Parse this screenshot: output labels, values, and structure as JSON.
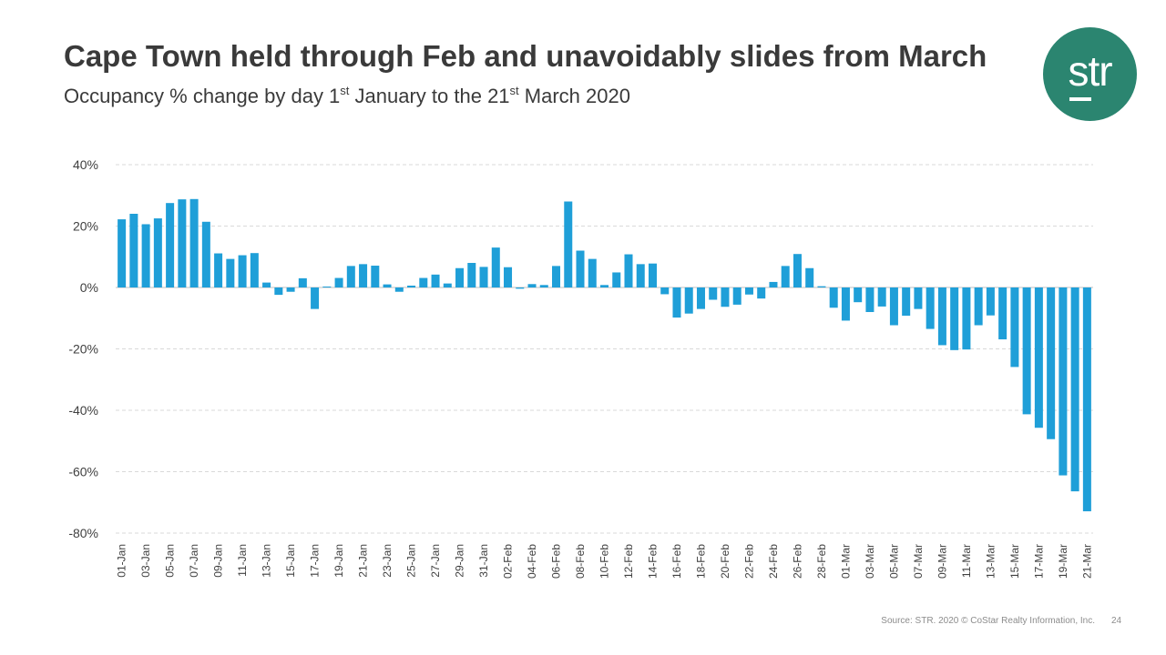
{
  "slide": {
    "title": "Cape Town held through Feb and unavoidably slides from March",
    "subtitle": {
      "part1": "Occupancy % change by day 1",
      "sup1": "st",
      "part2": " January to the 21",
      "sup2": "st",
      "part3": " March 2020"
    },
    "logo_text": "str",
    "source": "Source: STR. 2020 © CoStar Realty Information, Inc.",
    "page_number": "24"
  },
  "colors": {
    "bar": "#1f9fd8",
    "logo": "#2b8570",
    "grid": "#d9d9d9",
    "axis_text": "#404040"
  },
  "chart_data": {
    "type": "bar",
    "title": "",
    "xlabel": "",
    "ylabel": "",
    "ylim": [
      -80,
      40
    ],
    "yticks": [
      40,
      20,
      0,
      -20,
      -40,
      -60,
      -80
    ],
    "ytick_labels": [
      "40%",
      "20%",
      "0%",
      "-20%",
      "-40%",
      "-60%",
      "-80%"
    ],
    "grid": true,
    "categories": [
      "01-Jan",
      "02-Jan",
      "03-Jan",
      "04-Jan",
      "05-Jan",
      "06-Jan",
      "07-Jan",
      "08-Jan",
      "09-Jan",
      "10-Jan",
      "11-Jan",
      "12-Jan",
      "13-Jan",
      "14-Jan",
      "15-Jan",
      "16-Jan",
      "17-Jan",
      "18-Jan",
      "19-Jan",
      "20-Jan",
      "21-Jan",
      "22-Jan",
      "23-Jan",
      "24-Jan",
      "25-Jan",
      "26-Jan",
      "27-Jan",
      "28-Jan",
      "29-Jan",
      "30-Jan",
      "31-Jan",
      "01-Feb",
      "02-Feb",
      "03-Feb",
      "04-Feb",
      "05-Feb",
      "06-Feb",
      "07-Feb",
      "08-Feb",
      "09-Feb",
      "10-Feb",
      "11-Feb",
      "12-Feb",
      "13-Feb",
      "14-Feb",
      "15-Feb",
      "16-Feb",
      "17-Feb",
      "18-Feb",
      "19-Feb",
      "20-Feb",
      "21-Feb",
      "22-Feb",
      "23-Feb",
      "24-Feb",
      "25-Feb",
      "26-Feb",
      "27-Feb",
      "28-Feb",
      "29-Feb",
      "01-Mar",
      "02-Mar",
      "03-Mar",
      "04-Mar",
      "05-Mar",
      "06-Mar",
      "07-Mar",
      "08-Mar",
      "09-Mar",
      "10-Mar",
      "11-Mar",
      "12-Mar",
      "13-Mar",
      "14-Mar",
      "15-Mar",
      "16-Mar",
      "17-Mar",
      "18-Mar",
      "19-Mar",
      "20-Mar",
      "21-Mar"
    ],
    "shown_tick_labels": [
      "01-Jan",
      "03-Jan",
      "05-Jan",
      "07-Jan",
      "09-Jan",
      "11-Jan",
      "13-Jan",
      "15-Jan",
      "17-Jan",
      "19-Jan",
      "21-Jan",
      "23-Jan",
      "25-Jan",
      "27-Jan",
      "29-Jan",
      "31-Jan",
      "02-Feb",
      "04-Feb",
      "06-Feb",
      "08-Feb",
      "10-Feb",
      "12-Feb",
      "14-Feb",
      "16-Feb",
      "18-Feb",
      "20-Feb",
      "22-Feb",
      "24-Feb",
      "26-Feb",
      "28-Feb",
      "01-Mar",
      "03-Mar",
      "05-Mar",
      "07-Mar",
      "09-Mar",
      "11-Mar",
      "13-Mar",
      "15-Mar",
      "17-Mar",
      "19-Mar",
      "21-Mar"
    ],
    "series": [
      {
        "name": "Occupancy % change",
        "values": [
          22.2,
          24.0,
          20.6,
          22.5,
          27.5,
          28.7,
          28.8,
          21.4,
          11.1,
          9.3,
          10.5,
          11.2,
          1.6,
          -2.4,
          -1.4,
          3.0,
          -7.0,
          0.3,
          3.1,
          7.0,
          7.6,
          7.1,
          1.0,
          -1.4,
          0.6,
          3.1,
          4.2,
          1.3,
          6.3,
          8.0,
          6.7,
          13.0,
          6.6,
          -0.4,
          1.1,
          0.8,
          7.0,
          28.0,
          12.0,
          9.3,
          0.8,
          4.9,
          10.8,
          7.6,
          7.8,
          -2.2,
          -9.8,
          -8.5,
          -7.0,
          -4.0,
          -6.3,
          -5.6,
          -2.3,
          -3.6,
          1.8,
          7.0,
          10.9,
          6.3,
          0.4,
          -6.6,
          -10.8,
          -4.8,
          -8.0,
          -6.2,
          -12.3,
          -9.2,
          -7.0,
          -13.5,
          -18.8,
          -20.4,
          -20.2,
          -12.3,
          -9.1,
          -16.9,
          -25.9,
          -41.3,
          -45.7,
          -49.4,
          -61.2,
          -66.4,
          -72.9
        ]
      }
    ]
  }
}
